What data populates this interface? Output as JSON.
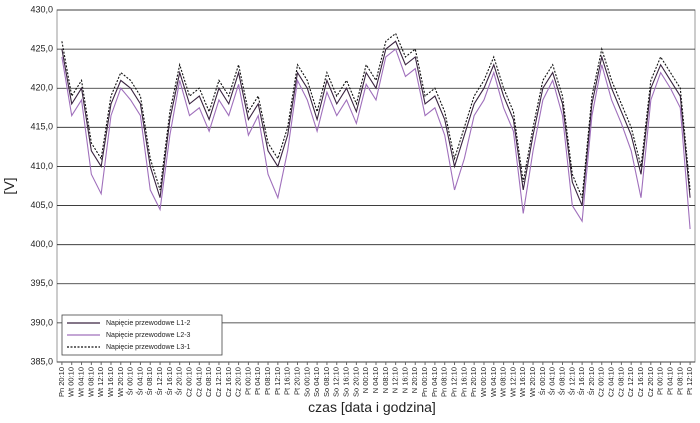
{
  "chart_data": {
    "type": "line",
    "y_label": "[V]",
    "x_label": "czas [data i godzina]",
    "categories": [
      "Pn 20:10",
      "Wt 00:10",
      "Wt 04:10",
      "Wt 08:10",
      "Wt 12:10",
      "Wt 16:10",
      "Wt 20:10",
      "Śr 00:10",
      "Śr 04:10",
      "Śr 08:10",
      "Śr 12:10",
      "Śr 16:10",
      "Śr 20:10",
      "Cz 00:10",
      "Cz 04:10",
      "Cz 08:10",
      "Cz 12:10",
      "Cz 16:10",
      "Cz 20:10",
      "Pt 00:10",
      "Pt 04:10",
      "Pt 08:10",
      "Pt 12:10",
      "Pt 16:10",
      "Pt 20:10",
      "So 00:10",
      "So 04:10",
      "So 08:10",
      "So 12:10",
      "So 16:10",
      "So 20:10",
      "N 00:10",
      "N 04:10",
      "N 08:10",
      "N 12:10",
      "N 16:10",
      "N 20:10",
      "Pn 00:10",
      "Pn 04:10",
      "Pn 08:10",
      "Pn 12:10",
      "Pn 16:10",
      "Pn 20:10",
      "Wt 00:10",
      "Wt 04:10",
      "Wt 08:10",
      "Wt 12:10",
      "Wt 16:10",
      "Wt 20:10",
      "Śr 00:10",
      "Śr 04:10",
      "Śr 08:10",
      "Śr 12:10",
      "Śr 16:10",
      "Śr 20:10",
      "Cz 00:10",
      "Cz 04:10",
      "Cz 08:10",
      "Cz 12:10",
      "Cz 16:10",
      "Cz 20:10",
      "Pt 00:10",
      "Pt 04:10",
      "Pt 08:10",
      "Pt 12:10"
    ],
    "series": [
      {
        "name": "Napięcie przewodowe L1-2",
        "color": "#3a2440",
        "dash": false,
        "values": [
          425,
          418,
          420,
          412,
          410,
          418,
          421,
          420,
          418,
          410,
          406,
          416,
          422,
          418,
          419,
          416,
          420,
          418,
          422,
          416,
          418,
          412,
          410,
          414,
          422,
          420,
          416,
          421,
          418,
          420,
          417,
          422,
          420,
          425,
          426,
          423,
          424,
          418,
          419,
          416,
          410,
          414,
          418,
          420,
          423,
          419,
          416,
          407,
          414,
          420,
          422,
          418,
          408,
          405,
          418,
          424,
          420,
          417,
          414,
          409,
          420,
          423,
          421,
          419,
          406
        ]
      },
      {
        "name": "Napięcie przewodowe L2-3",
        "color": "#a070bc",
        "dash": false,
        "values": [
          424,
          416.5,
          418.5,
          409,
          406.5,
          416.5,
          420,
          418.5,
          416.5,
          407,
          404.5,
          414,
          421,
          416.5,
          417.5,
          414.5,
          418.5,
          416.5,
          420.5,
          414,
          416.5,
          409,
          406,
          412,
          421,
          418.5,
          414.5,
          419.5,
          416.5,
          418.5,
          415.5,
          420.5,
          418.5,
          424,
          425,
          421.5,
          422.5,
          416.5,
          417.5,
          414,
          407,
          411,
          416.5,
          418.5,
          422,
          417.5,
          414.5,
          404,
          412,
          418.5,
          421,
          416.5,
          405,
          403,
          416.5,
          423,
          418.5,
          415.5,
          412,
          406,
          418.5,
          422,
          420,
          417.5,
          402
        ]
      },
      {
        "name": "Napięcie przewodowe L3-1",
        "color": "#111111",
        "dash": true,
        "values": [
          426,
          419,
          421,
          413,
          411,
          419,
          422,
          421,
          419,
          411,
          407,
          417,
          423,
          419,
          420,
          417,
          421,
          419,
          423,
          417,
          419,
          413,
          411,
          415,
          423,
          421,
          417,
          422,
          419,
          421,
          418,
          423,
          421,
          426,
          427,
          424,
          425,
          419,
          420,
          417,
          411,
          415,
          419,
          421,
          424,
          420,
          417,
          408,
          415,
          421,
          423,
          419,
          409,
          406,
          419,
          425,
          421,
          418,
          415,
          410,
          421,
          424,
          422,
          420,
          407
        ]
      }
    ],
    "ylim": [
      385,
      430
    ],
    "yticks": [
      {
        "value": 385,
        "label": "385,0"
      },
      {
        "value": 390,
        "label": "390,0"
      },
      {
        "value": 395,
        "label": "395,0"
      },
      {
        "value": 400,
        "label": "400,0"
      },
      {
        "value": 405,
        "label": "405,0"
      },
      {
        "value": 410,
        "label": "410,0"
      },
      {
        "value": 415,
        "label": "415,0"
      },
      {
        "value": 420,
        "label": "420,0"
      },
      {
        "value": 425,
        "label": "425,0"
      },
      {
        "value": 430,
        "label": "430,0"
      }
    ],
    "grid": true,
    "legend": "lower left"
  }
}
